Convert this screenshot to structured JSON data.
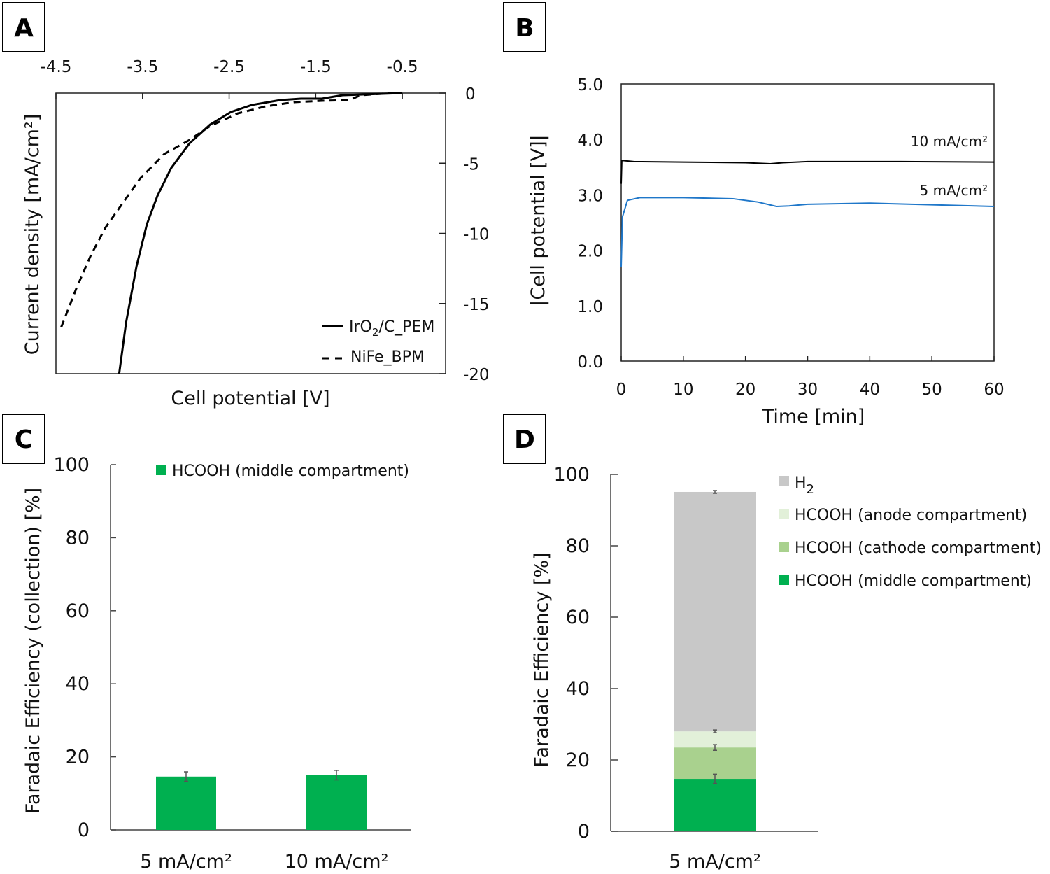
{
  "chart_data": [
    {
      "panel": "A",
      "type": "line",
      "xlabel": "Cell potential [V]",
      "ylabel": "Current density [mA/cm²]",
      "xlim": [
        -4.5,
        0
      ],
      "ylim": [
        -20,
        0
      ],
      "xticks": [
        "-4.5",
        "-3.5",
        "-2.5",
        "-1.5",
        "-0.5"
      ],
      "yticks": [
        "0",
        "-5",
        "-10",
        "-15",
        "-20"
      ],
      "legend_position": "bottom-right",
      "series": [
        {
          "name": "IrO2/C_PEM",
          "legend_main": "IrO",
          "legend_sub": "2",
          "legend_rest": "/C_PEM",
          "style": "solid",
          "color": "#000000",
          "x": [
            -3.77,
            -3.69,
            -3.57,
            -3.45,
            -3.33,
            -3.17,
            -2.96,
            -2.72,
            -2.48,
            -2.24,
            -1.91,
            -1.67,
            -1.43,
            -1.19,
            -0.5
          ],
          "y": [
            -20,
            -16.35,
            -12.35,
            -9.35,
            -7.35,
            -5.35,
            -3.6,
            -2.25,
            -1.35,
            -0.85,
            -0.5,
            -0.4,
            -0.4,
            -0.15,
            0
          ]
        },
        {
          "name": "NiFe_BPM",
          "style": "dashed",
          "color": "#000000",
          "x": [
            -4.44,
            -4.26,
            -4.1,
            -3.93,
            -3.73,
            -3.53,
            -3.25,
            -2.96,
            -2.72,
            -2.4,
            -2.08,
            -1.75,
            -1.43,
            -1.11,
            -0.98,
            -0.62
          ],
          "y": [
            -16.7,
            -13.85,
            -11.6,
            -9.6,
            -7.85,
            -6.1,
            -4.35,
            -3.35,
            -2.35,
            -1.45,
            -0.95,
            -0.65,
            -0.55,
            -0.5,
            -0.15,
            0
          ]
        }
      ]
    },
    {
      "panel": "B",
      "type": "line",
      "xlabel": "Time [min]",
      "ylabel": "|Cell potential [V]|",
      "xlim": [
        0,
        60
      ],
      "ylim": [
        0,
        5
      ],
      "xticks": [
        "0",
        "10",
        "20",
        "30",
        "40",
        "50",
        "60"
      ],
      "yticks": [
        "0.0",
        "1.0",
        "2.0",
        "3.0",
        "4.0",
        "5.0"
      ],
      "series": [
        {
          "name": "10 mA/cm²",
          "color": "#000000",
          "x": [
            0,
            0.1,
            2,
            10,
            20,
            24,
            26,
            30,
            45,
            60
          ],
          "y": [
            3.2,
            3.62,
            3.6,
            3.59,
            3.58,
            3.56,
            3.58,
            3.6,
            3.6,
            3.59
          ]
        },
        {
          "name": "5 mA/cm²",
          "color": "#1f77c9",
          "x": [
            0,
            0.2,
            1,
            3,
            10,
            18,
            22,
            25,
            27,
            30,
            40,
            50,
            60
          ],
          "y": [
            1.7,
            2.6,
            2.9,
            2.95,
            2.95,
            2.93,
            2.87,
            2.79,
            2.8,
            2.83,
            2.85,
            2.82,
            2.79
          ]
        }
      ]
    },
    {
      "panel": "C",
      "type": "bar",
      "ylabel": "Faradaic Efficiency (collection) [%]",
      "ylim": [
        0,
        100
      ],
      "yticks": [
        "0",
        "20",
        "40",
        "60",
        "80",
        "100"
      ],
      "categories": [
        "5 mA/cm²",
        "10 mA/cm²"
      ],
      "series": [
        {
          "name": "HCOOH (middle compartment)",
          "color": "#00b050",
          "values": [
            14.6,
            15.0
          ],
          "errors": [
            1.3,
            1.3
          ]
        }
      ],
      "legend_position": "top"
    },
    {
      "panel": "D",
      "type": "bar",
      "stacked": true,
      "ylabel": "Faradaic Efficiency [%]",
      "ylim": [
        0,
        100
      ],
      "yticks": [
        "0",
        "20",
        "40",
        "60",
        "80",
        "100"
      ],
      "categories": [
        "5 mA/cm²"
      ],
      "series": [
        {
          "name": "HCOOH (middle compartment)",
          "color": "#00b050",
          "values": [
            14.7
          ],
          "errors": [
            1.3
          ]
        },
        {
          "name": "HCOOH (cathode compartment)",
          "color": "#a9d18e",
          "values": [
            8.8
          ],
          "errors": [
            0.8
          ]
        },
        {
          "name": "HCOOH (anode compartment)",
          "color": "#e2f0d9",
          "values": [
            4.5
          ],
          "errors": [
            0.4
          ]
        },
        {
          "name": "H2",
          "label_main": "H",
          "label_sub": "2",
          "color": "#c8c8c8",
          "values": [
            67.1
          ],
          "errors": [
            0.4
          ]
        }
      ],
      "legend_position": "top-right"
    }
  ],
  "panel_labels": [
    "A",
    "B",
    "C",
    "D"
  ]
}
